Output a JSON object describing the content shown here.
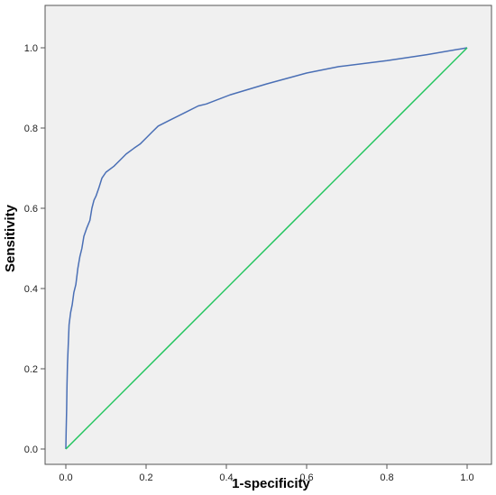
{
  "chart_data": {
    "type": "line",
    "title": "",
    "xlabel": "1-specificity",
    "ylabel": "Sensitivity",
    "xlim": [
      0,
      1
    ],
    "ylim": [
      0,
      1
    ],
    "x_ticks": [
      "0.0",
      "0.2",
      "0.4",
      "0.6",
      "0.8",
      "1.0"
    ],
    "y_ticks": [
      "0.0",
      "0.2",
      "0.4",
      "0.6",
      "0.8",
      "1.0"
    ],
    "grid": false,
    "legend": "none",
    "background_color": "#f0f0f0",
    "series": [
      {
        "color": "#4a6fb5",
        "points": [
          [
            0.0,
            0.0
          ],
          [
            0.001,
            0.05
          ],
          [
            0.002,
            0.1
          ],
          [
            0.003,
            0.16
          ],
          [
            0.004,
            0.21
          ],
          [
            0.006,
            0.26
          ],
          [
            0.008,
            0.31
          ],
          [
            0.012,
            0.34
          ],
          [
            0.016,
            0.36
          ],
          [
            0.02,
            0.39
          ],
          [
            0.025,
            0.41
          ],
          [
            0.03,
            0.45
          ],
          [
            0.035,
            0.48
          ],
          [
            0.04,
            0.5
          ],
          [
            0.045,
            0.53
          ],
          [
            0.052,
            0.55
          ],
          [
            0.06,
            0.57
          ],
          [
            0.065,
            0.6
          ],
          [
            0.07,
            0.62
          ],
          [
            0.075,
            0.63
          ],
          [
            0.082,
            0.65
          ],
          [
            0.09,
            0.675
          ],
          [
            0.1,
            0.69
          ],
          [
            0.12,
            0.705
          ],
          [
            0.135,
            0.72
          ],
          [
            0.15,
            0.735
          ],
          [
            0.17,
            0.75
          ],
          [
            0.185,
            0.76
          ],
          [
            0.2,
            0.775
          ],
          [
            0.215,
            0.79
          ],
          [
            0.23,
            0.805
          ],
          [
            0.26,
            0.82
          ],
          [
            0.3,
            0.84
          ],
          [
            0.33,
            0.855
          ],
          [
            0.35,
            0.86
          ],
          [
            0.41,
            0.883
          ],
          [
            0.5,
            0.91
          ],
          [
            0.6,
            0.937
          ],
          [
            0.68,
            0.953
          ],
          [
            0.8,
            0.968
          ],
          [
            0.9,
            0.983
          ],
          [
            1.0,
            1.0
          ]
        ]
      },
      {
        "color": "#22c55e",
        "points": [
          [
            0,
            0
          ],
          [
            1,
            1
          ]
        ]
      }
    ]
  }
}
